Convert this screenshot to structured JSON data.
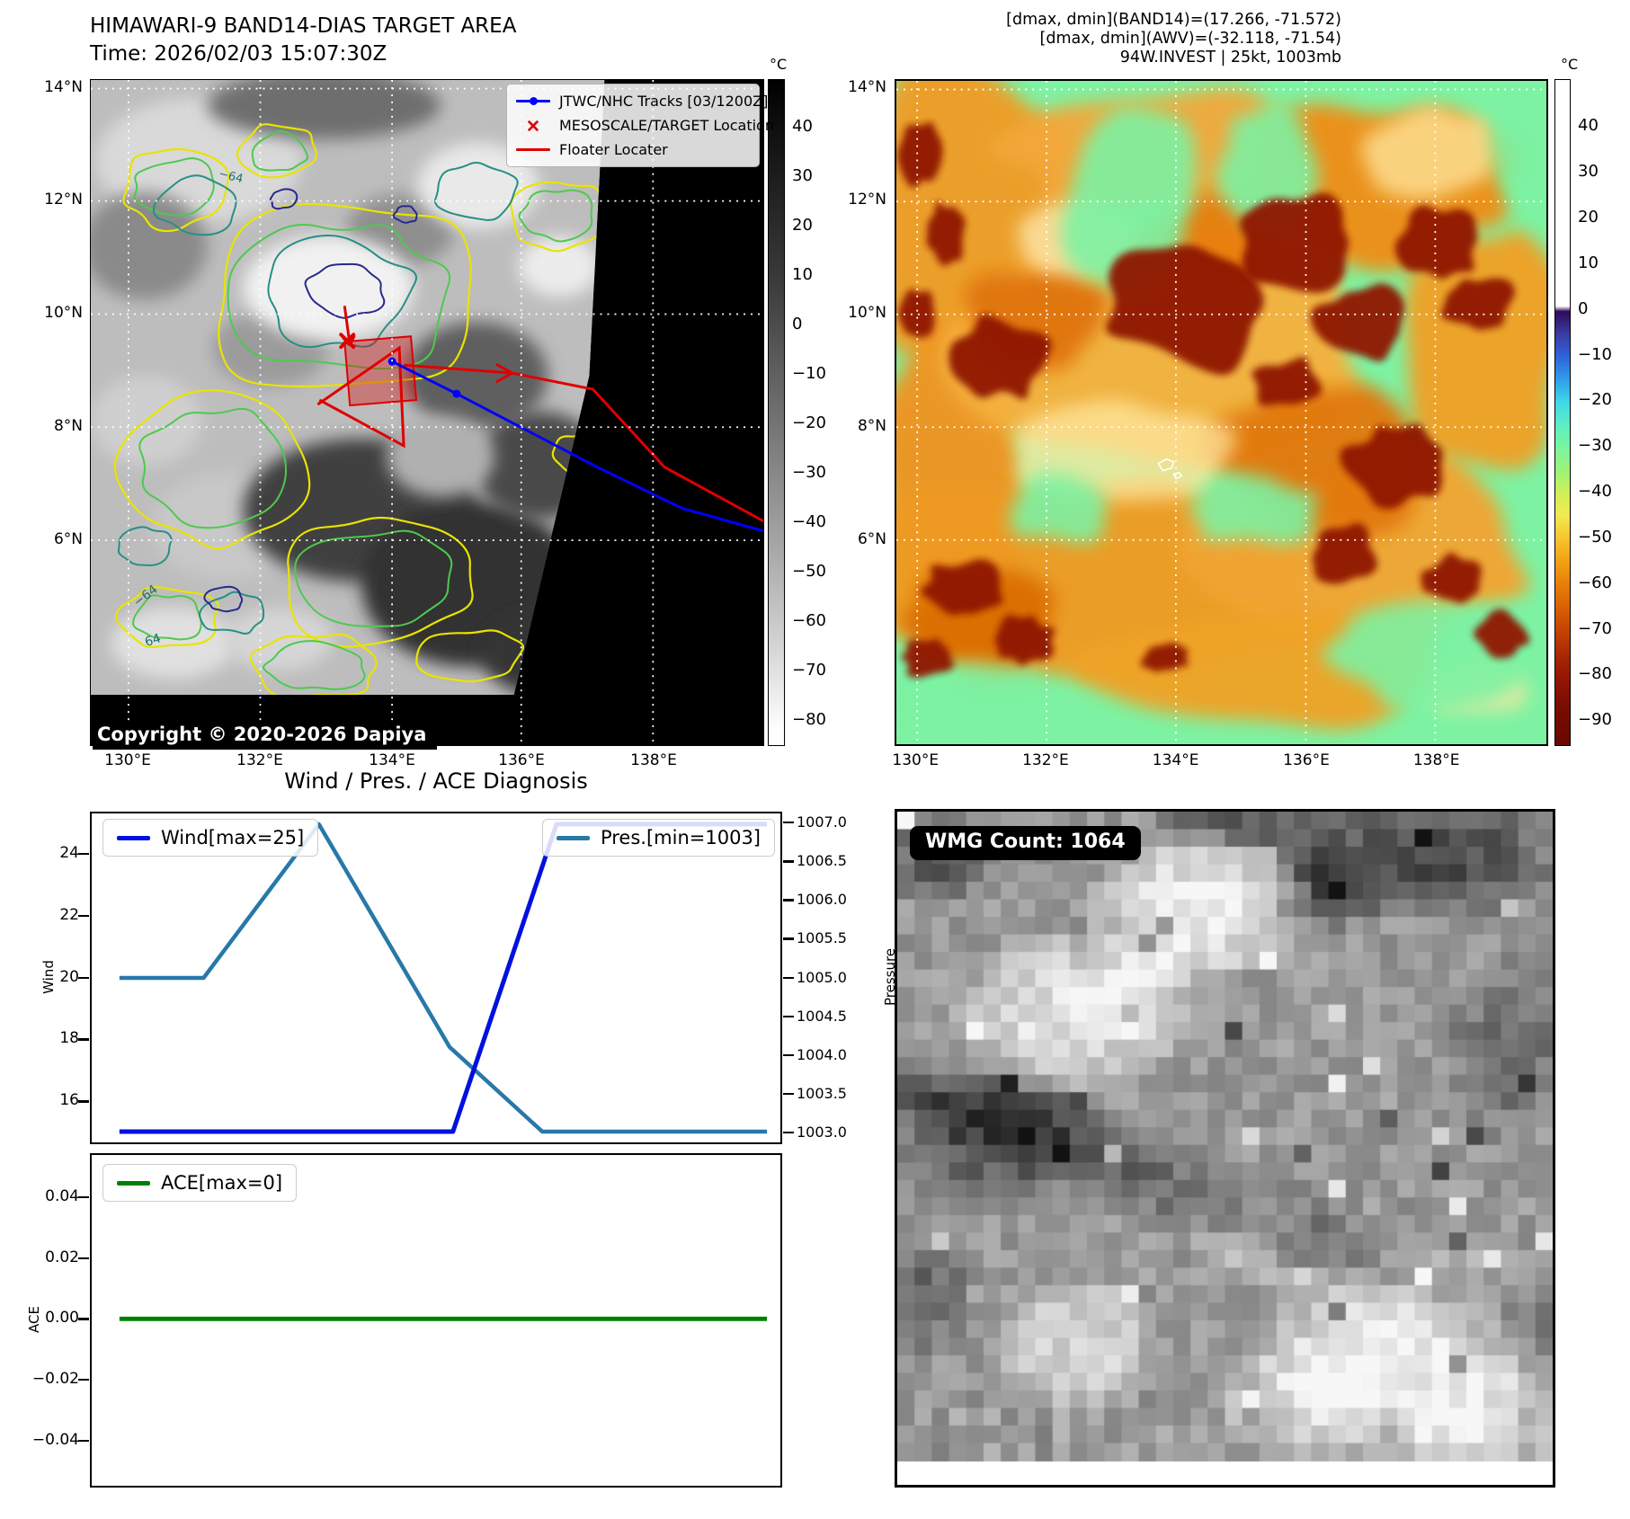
{
  "colors": {
    "wind_line": "#0010e0",
    "pres_line": "#2878a8",
    "ace_line": "#008000",
    "track_red": "#e00000",
    "track_blue": "#0000ff",
    "contour_yellow": "#e8e400",
    "contour_green": "#4ec94e",
    "contour_teal": "#278f85",
    "contour_navy": "#28288f"
  },
  "panel_band14": {
    "title_line1": "HIMAWARI-9 BAND14-DIAS TARGET AREA",
    "title_line2": "Time: 2026/02/03 15:07:30Z",
    "legend": [
      "JTWC/NHC Tracks [03/1200Z]",
      "MESOSCALE/TARGET Location",
      "Floater Locater"
    ],
    "copyright": "Copyright © 2020-2026 Dapiya",
    "contour_labels": [
      "−64",
      "64",
      "−64"
    ],
    "colorbar_unit": "°C",
    "colorbar_ticks": [
      "40",
      "30",
      "20",
      "10",
      "0",
      "−10",
      "−20",
      "−30",
      "−40",
      "−50",
      "−60",
      "−70",
      "−80"
    ],
    "x_ticks": [
      "130°E",
      "132°E",
      "134°E",
      "136°E",
      "138°E"
    ],
    "y_ticks": [
      "14°N",
      "12°N",
      "10°N",
      "8°N",
      "6°N"
    ]
  },
  "panel_awv": {
    "header_lines": [
      "[dmax, dmin](BAND14)=(17.266, -71.572)",
      "[dmax, dmin](AWV)=(-32.118, -71.54)",
      "94W.INVEST | 25kt, 1003mb"
    ],
    "colorbar_unit": "°C",
    "colorbar_ticks": [
      "40",
      "30",
      "20",
      "10",
      "0",
      "−10",
      "−20",
      "−30",
      "−40",
      "−50",
      "−60",
      "−70",
      "−80",
      "−90"
    ],
    "x_ticks": [
      "130°E",
      "132°E",
      "134°E",
      "136°E",
      "138°E"
    ],
    "y_ticks": [
      "14°N",
      "12°N",
      "10°N",
      "8°N",
      "6°N"
    ]
  },
  "diagnosis": {
    "title": "Wind / Pres. / ACE Diagnosis",
    "wind_legend": "Wind[max=25]",
    "pres_legend": "Pres.[min=1003]",
    "ace_legend": "ACE[max=0]",
    "wind_axis_label": "Wind",
    "pres_axis_label": "Pressure",
    "ace_axis_label": "ACE",
    "wind_tick_labels": [
      "24",
      "22",
      "20",
      "18",
      "16"
    ],
    "pres_tick_labels": [
      "1007.0",
      "1006.5",
      "1006.0",
      "1005.5",
      "1005.0",
      "1004.5",
      "1004.0",
      "1003.5",
      "1003.0"
    ],
    "ace_tick_labels": [
      "0.04",
      "0.02",
      "0.00",
      "−0.02",
      "−0.04"
    ]
  },
  "wmg": {
    "count_label": "WMG Count: 1064"
  },
  "chart_data": [
    {
      "type": "line",
      "title": "Wind / Pres. / ACE Diagnosis",
      "x": {
        "label": "",
        "range": [
          0,
          1
        ],
        "ticks_visible": false
      },
      "grid": false,
      "legend_position": [
        "upper left",
        "upper right"
      ],
      "axes": {
        "left": {
          "label": "Wind",
          "lim": [
            14.65,
            25.35
          ],
          "ticks": [
            24,
            22,
            20,
            18,
            16
          ]
        },
        "right": {
          "label": "Pressure",
          "lim": [
            1002.86,
            1007.14
          ],
          "ticks": [
            1007.0,
            1006.5,
            1006.0,
            1005.5,
            1005.0,
            1004.5,
            1004.0,
            1003.5,
            1003.0
          ]
        }
      },
      "series": [
        {
          "name": "Wind[max=25]",
          "axis": "left",
          "color_key": "wind_line",
          "width": 5,
          "points": [
            [
              0,
              15
            ],
            [
              0.515,
              15
            ],
            [
              0.675,
              25
            ],
            [
              1,
              25
            ]
          ]
        },
        {
          "name": "Pres.[min=1003]",
          "axis": "right",
          "color_key": "pres_line",
          "width": 4.5,
          "points": [
            [
              0,
              1005
            ],
            [
              0.13,
              1005
            ],
            [
              0.308,
              1007
            ],
            [
              0.51,
              1004.1
            ],
            [
              0.653,
              1003
            ],
            [
              1,
              1003
            ]
          ]
        }
      ],
      "annotations": {
        "wind_max_kt": 25,
        "pres_min_mb": 1003
      }
    },
    {
      "type": "line",
      "grid": false,
      "legend_position": [
        "upper left"
      ],
      "axes": {
        "left": {
          "label": "ACE",
          "lim": [
            -0.0555,
            0.0545
          ],
          "ticks": [
            0.04,
            0.02,
            0.0,
            -0.02,
            -0.04
          ]
        }
      },
      "series": [
        {
          "name": "ACE[max=0]",
          "axis": "left",
          "color_key": "ace_line",
          "width": 5,
          "points": [
            [
              0,
              0
            ],
            [
              1,
              0
            ]
          ]
        }
      ],
      "annotations": {
        "ace_max": 0
      }
    }
  ]
}
